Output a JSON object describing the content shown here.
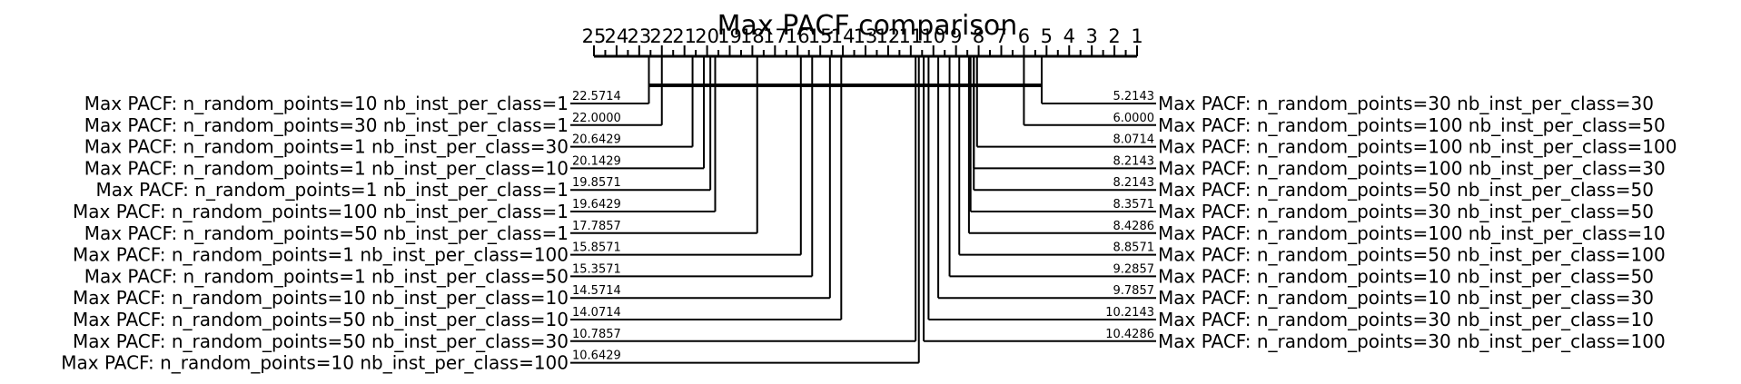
{
  "chart_data": {
    "type": "critical-difference-diagram",
    "title": "Max PACF comparison",
    "axis_ticks": [
      "25",
      "24",
      "23",
      "22",
      "21",
      "20",
      "19",
      "18",
      "17",
      "16",
      "15",
      "14",
      "13",
      "12",
      "11",
      "10",
      "9",
      "8",
      "7",
      "6",
      "5",
      "4",
      "3",
      "2",
      "1"
    ],
    "xlim": [
      25,
      1
    ],
    "left_methods": [
      {
        "name": "Max PACF: n_random_points=10 nb_inst_per_class=1",
        "rank": 22.5714,
        "rank_label": "22.5714"
      },
      {
        "name": "Max PACF: n_random_points=30 nb_inst_per_class=1",
        "rank": 22.0,
        "rank_label": "22.0000"
      },
      {
        "name": "Max PACF: n_random_points=1 nb_inst_per_class=30",
        "rank": 20.6429,
        "rank_label": "20.6429"
      },
      {
        "name": "Max PACF: n_random_points=1 nb_inst_per_class=10",
        "rank": 20.1429,
        "rank_label": "20.1429"
      },
      {
        "name": "Max PACF: n_random_points=1 nb_inst_per_class=1",
        "rank": 19.8571,
        "rank_label": "19.8571"
      },
      {
        "name": "Max PACF: n_random_points=100 nb_inst_per_class=1",
        "rank": 19.6429,
        "rank_label": "19.6429"
      },
      {
        "name": "Max PACF: n_random_points=50 nb_inst_per_class=1",
        "rank": 17.7857,
        "rank_label": "17.7857"
      },
      {
        "name": "Max PACF: n_random_points=1 nb_inst_per_class=100",
        "rank": 15.8571,
        "rank_label": "15.8571"
      },
      {
        "name": "Max PACF: n_random_points=1 nb_inst_per_class=50",
        "rank": 15.3571,
        "rank_label": "15.3571"
      },
      {
        "name": "Max PACF: n_random_points=10 nb_inst_per_class=10",
        "rank": 14.5714,
        "rank_label": "14.5714"
      },
      {
        "name": "Max PACF: n_random_points=50 nb_inst_per_class=10",
        "rank": 14.0714,
        "rank_label": "14.0714"
      },
      {
        "name": "Max PACF: n_random_points=50 nb_inst_per_class=30",
        "rank": 10.7857,
        "rank_label": "10.7857"
      },
      {
        "name": "Max PACF: n_random_points=10 nb_inst_per_class=100",
        "rank": 10.6429,
        "rank_label": "10.6429"
      }
    ],
    "right_methods": [
      {
        "name": "Max PACF: n_random_points=30 nb_inst_per_class=30",
        "rank": 5.2143,
        "rank_label": "5.2143"
      },
      {
        "name": "Max PACF: n_random_points=100 nb_inst_per_class=50",
        "rank": 6.0,
        "rank_label": "6.0000"
      },
      {
        "name": "Max PACF: n_random_points=100 nb_inst_per_class=100",
        "rank": 8.0714,
        "rank_label": "8.0714"
      },
      {
        "name": "Max PACF: n_random_points=100 nb_inst_per_class=30",
        "rank": 8.2143,
        "rank_label": "8.2143"
      },
      {
        "name": "Max PACF: n_random_points=50 nb_inst_per_class=50",
        "rank": 8.2143,
        "rank_label": "8.2143"
      },
      {
        "name": "Max PACF: n_random_points=30 nb_inst_per_class=50",
        "rank": 8.3571,
        "rank_label": "8.3571"
      },
      {
        "name": "Max PACF: n_random_points=100 nb_inst_per_class=10",
        "rank": 8.4286,
        "rank_label": "8.4286"
      },
      {
        "name": "Max PACF: n_random_points=50 nb_inst_per_class=100",
        "rank": 8.8571,
        "rank_label": "8.8571"
      },
      {
        "name": "Max PACF: n_random_points=10 nb_inst_per_class=50",
        "rank": 9.2857,
        "rank_label": "9.2857"
      },
      {
        "name": "Max PACF: n_random_points=10 nb_inst_per_class=30",
        "rank": 9.7857,
        "rank_label": "9.7857"
      },
      {
        "name": "Max PACF: n_random_points=30 nb_inst_per_class=10",
        "rank": 10.2143,
        "rank_label": "10.2143"
      },
      {
        "name": "Max PACF: n_random_points=30 nb_inst_per_class=100",
        "rank": 10.4286,
        "rank_label": "10.4286"
      }
    ],
    "cliques": [
      {
        "from_rank": 22.5714,
        "to_rank": 5.2143
      }
    ],
    "grid": false
  }
}
